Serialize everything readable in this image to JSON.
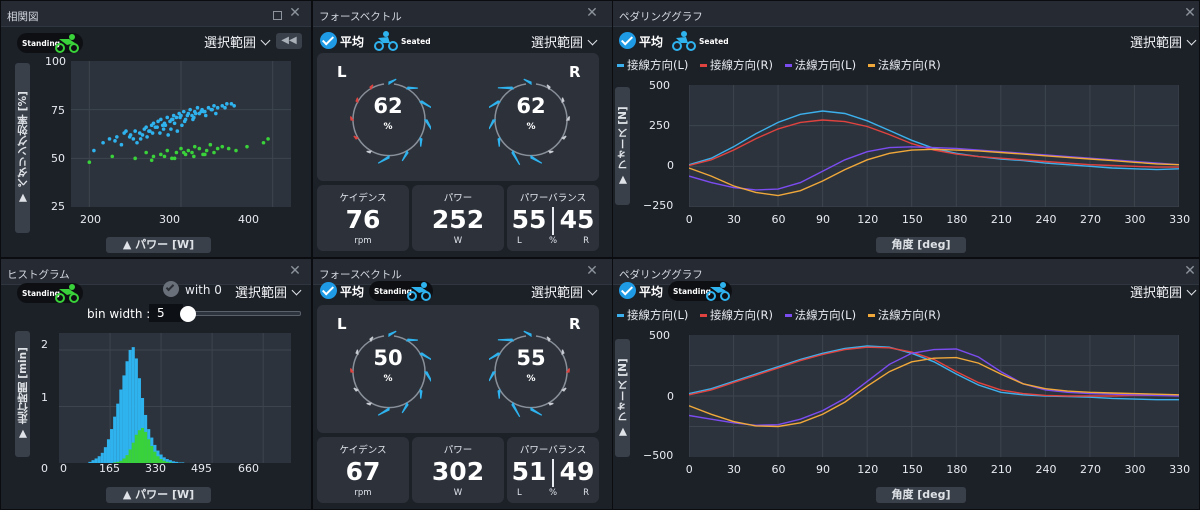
{
  "colors": {
    "blue": "#2fb3ef",
    "green": "#3ad23a",
    "tan_r": "#e0433f",
    "tan_l": "#3cb0ec",
    "nor_l": "#7b4cf0",
    "nor_r": "#f0a83a",
    "accent": "#1f9be6"
  },
  "icons": [
    "standing-rider-icon",
    "seated-rider-icon",
    "check-icon",
    "close-icon",
    "maximize-icon",
    "chevron-down-icon",
    "double-arrow-icon"
  ],
  "scatter": {
    "title": "相関図",
    "badge": "Standing",
    "range_label": "選択範囲",
    "ylabel": "▼ ペダリング効率 [%]",
    "xlabel": "▲ パワー [W]",
    "yticks": [
      "100",
      "75",
      "50",
      "25"
    ],
    "xticks": [
      "200",
      "300",
      "400"
    ]
  },
  "histogram": {
    "title": "ヒストグラム",
    "badge": "Standing",
    "with_label": "with 0",
    "range_label": "選択範囲",
    "bin_label": "bin width :",
    "bin_value": "5",
    "bin_fraction": 0.0,
    "ylabel": "▼ 走行時間 [min]",
    "xlabel": "▲ パワー [W]",
    "yticks": [
      "2",
      "1",
      "0"
    ],
    "xticks": [
      "0",
      "165",
      "330",
      "495",
      "660"
    ]
  },
  "force_top": {
    "title": "フォースベクトル",
    "avg_label": "平均",
    "badge": "Seated",
    "range_label": "選択範囲",
    "left_side": "L",
    "right_side": "R",
    "left_value": "62",
    "right_value": "62",
    "pct": "%",
    "cadence": {
      "label": "ケイデンス",
      "value": "76",
      "unit": "rpm"
    },
    "power": {
      "label": "パワー",
      "value": "252",
      "unit": "W"
    },
    "balance": {
      "label": "パワーバランス",
      "left": "55",
      "right": "45",
      "l": "L",
      "pct": "%",
      "r": "R"
    }
  },
  "force_bottom": {
    "title": "フォースベクトル",
    "avg_label": "平均",
    "badge": "Standing",
    "range_label": "選択範囲",
    "left_side": "L",
    "right_side": "R",
    "left_value": "50",
    "right_value": "55",
    "pct": "%",
    "cadence": {
      "label": "ケイデンス",
      "value": "67",
      "unit": "rpm"
    },
    "power": {
      "label": "パワー",
      "value": "302",
      "unit": "W"
    },
    "balance": {
      "label": "パワーバランス",
      "left": "51",
      "right": "49",
      "l": "L",
      "pct": "%",
      "r": "R"
    }
  },
  "pedal_top": {
    "title": "ペダリンググラフ",
    "avg_label": "平均",
    "badge": "Seated",
    "range_label": "選択範囲",
    "ylabel": "▼ フォース [N]",
    "xlabel": "角度 [deg]",
    "legend": [
      "接線方向(L)",
      "接線方向(R)",
      "法線方向(L)",
      "法線方向(R)"
    ],
    "yticks": [
      "500",
      "250",
      "0",
      "−250"
    ],
    "xticks": [
      "0",
      "30",
      "60",
      "90",
      "120",
      "150",
      "180",
      "210",
      "240",
      "270",
      "300",
      "330"
    ]
  },
  "pedal_bottom": {
    "title": "ペダリンググラフ",
    "avg_label": "平均",
    "badge": "Standing",
    "range_label": "選択範囲",
    "ylabel": "▼ フォース [N]",
    "xlabel": "角度 [deg]",
    "legend": [
      "接線方向(L)",
      "接線方向(R)",
      "法線方向(L)",
      "法線方向(R)"
    ],
    "yticks": [
      "500",
      "0",
      "−500"
    ],
    "xticks": [
      "0",
      "30",
      "60",
      "90",
      "120",
      "150",
      "180",
      "210",
      "240",
      "270",
      "300",
      "330"
    ]
  },
  "chart_data": [
    {
      "type": "scatter",
      "name": "correlation",
      "xlabel": "▲ パワー [W]",
      "ylabel": "▼ ペダリング効率 [%]",
      "xlim": [
        180,
        420
      ],
      "ylim": [
        25,
        100
      ],
      "series": [
        {
          "color": "#2fb3ef",
          "x": [
            205,
            215,
            222,
            230,
            238,
            245,
            250,
            255,
            260,
            262,
            265,
            268,
            270,
            272,
            275,
            278,
            280,
            282,
            285,
            288,
            290,
            292,
            295,
            298,
            300,
            303,
            305,
            308,
            310,
            312,
            315,
            318,
            320,
            323,
            326,
            330,
            333,
            336,
            340,
            345,
            350,
            355,
            235,
            248,
            258,
            266,
            274,
            283,
            291,
            299,
            307,
            316,
            325,
            334,
            228,
            244,
            256,
            269,
            281,
            293,
            304,
            314,
            322,
            338,
            348,
            358,
            240,
            252,
            263,
            277,
            289,
            301,
            313,
            327,
            286,
            296
          ],
          "y": [
            54,
            58,
            60,
            61,
            63,
            62,
            64,
            63,
            65,
            66,
            64,
            67,
            68,
            66,
            69,
            70,
            67,
            68,
            71,
            69,
            70,
            72,
            71,
            73,
            72,
            74,
            70,
            73,
            75,
            72,
            74,
            76,
            73,
            75,
            74,
            76,
            75,
            77,
            76,
            77,
            78,
            78,
            57,
            60,
            62,
            64,
            66,
            67,
            70,
            71,
            72,
            73,
            74,
            75,
            59,
            61,
            60,
            63,
            65,
            68,
            69,
            71,
            74,
            73,
            76,
            77,
            64,
            58,
            61,
            63,
            65,
            67,
            70,
            72,
            62,
            64
          ]
        },
        {
          "color": "#3ad23a",
          "x": [
            200,
            225,
            250,
            262,
            270,
            278,
            285,
            290,
            295,
            300,
            305,
            308,
            312,
            315,
            320,
            324,
            328,
            332,
            336,
            340,
            345,
            352,
            360,
            372,
            390,
            395,
            268,
            282,
            293,
            303,
            314,
            326
          ],
          "y": [
            48,
            51,
            50,
            53,
            51,
            52,
            54,
            50,
            53,
            55,
            52,
            54,
            53,
            56,
            55,
            52,
            54,
            57,
            53,
            55,
            56,
            55,
            54,
            56,
            58,
            60,
            49,
            51,
            50,
            53,
            51,
            52
          ]
        }
      ]
    },
    {
      "type": "bar",
      "name": "histogram",
      "xlabel": "▲ パワー [W]",
      "ylabel": "▼ 走行時間 [min]",
      "xlim": [
        0,
        750
      ],
      "ylim": [
        0,
        2.3
      ],
      "categories": [
        100,
        110,
        120,
        130,
        140,
        150,
        160,
        170,
        180,
        190,
        200,
        210,
        220,
        230,
        240,
        250,
        260,
        270,
        280,
        290,
        300,
        310,
        320,
        330,
        340,
        350,
        360,
        370,
        380,
        390,
        400
      ],
      "series": [
        {
          "name": "total",
          "color": "#2fb3ef",
          "values": [
            0.02,
            0.05,
            0.08,
            0.12,
            0.18,
            0.28,
            0.42,
            0.6,
            0.82,
            1.05,
            1.3,
            1.55,
            1.8,
            2.0,
            2.05,
            1.85,
            1.5,
            1.15,
            0.85,
            0.6,
            0.45,
            0.32,
            0.22,
            0.15,
            0.1,
            0.07,
            0.05,
            0.03,
            0.02,
            0.01,
            0.01
          ]
        },
        {
          "name": "standing",
          "color": "#3ad23a",
          "values": [
            0,
            0,
            0,
            0,
            0,
            0,
            0,
            0,
            0.01,
            0.02,
            0.04,
            0.08,
            0.14,
            0.24,
            0.36,
            0.5,
            0.58,
            0.62,
            0.55,
            0.42,
            0.3,
            0.2,
            0.12,
            0.07,
            0.04,
            0.02,
            0.01,
            0,
            0,
            0,
            0
          ]
        }
      ]
    },
    {
      "type": "line",
      "name": "pedaling_top",
      "xlabel": "角度 [deg]",
      "ylabel": "▼ フォース [N]",
      "xlim": [
        0,
        330
      ],
      "ylim": [
        -250,
        500
      ],
      "x": [
        0,
        15,
        30,
        45,
        60,
        75,
        90,
        105,
        120,
        135,
        150,
        165,
        180,
        195,
        210,
        225,
        240,
        255,
        270,
        285,
        300,
        315,
        330
      ],
      "series": [
        {
          "name": "接線方向(L)",
          "color": "#3cb0ec",
          "values": [
            10,
            50,
            120,
            200,
            270,
            320,
            340,
            325,
            280,
            220,
            160,
            110,
            80,
            60,
            45,
            35,
            20,
            10,
            0,
            -10,
            -15,
            -20,
            -15
          ]
        },
        {
          "name": "接線方向(R)",
          "color": "#e0433f",
          "values": [
            5,
            40,
            100,
            170,
            230,
            270,
            285,
            275,
            245,
            195,
            140,
            100,
            75,
            60,
            50,
            40,
            30,
            20,
            10,
            5,
            0,
            -5,
            -5
          ]
        },
        {
          "name": "法線方向(L)",
          "color": "#7b4cf0",
          "values": [
            -60,
            -100,
            -130,
            -145,
            -140,
            -100,
            -30,
            40,
            90,
            115,
            120,
            115,
            110,
            100,
            90,
            80,
            70,
            60,
            50,
            40,
            30,
            20,
            10
          ]
        },
        {
          "name": "法線方向(R)",
          "color": "#f0a83a",
          "values": [
            -10,
            -60,
            -120,
            -160,
            -180,
            -150,
            -90,
            -20,
            40,
            80,
            100,
            105,
            100,
            95,
            85,
            75,
            65,
            55,
            45,
            35,
            25,
            15,
            10
          ]
        }
      ]
    },
    {
      "type": "line",
      "name": "pedaling_bottom",
      "xlabel": "角度 [deg]",
      "ylabel": "▼ フォース [N]",
      "xlim": [
        0,
        330
      ],
      "ylim": [
        -500,
        500
      ],
      "x": [
        0,
        15,
        30,
        45,
        60,
        75,
        90,
        105,
        120,
        135,
        150,
        165,
        180,
        195,
        210,
        225,
        240,
        255,
        270,
        285,
        300,
        315,
        330
      ],
      "series": [
        {
          "name": "接線方向(L)",
          "color": "#3cb0ec",
          "values": [
            20,
            60,
            120,
            180,
            240,
            300,
            350,
            390,
            410,
            400,
            350,
            280,
            180,
            90,
            30,
            10,
            0,
            -5,
            -10,
            -20,
            -25,
            -30,
            -30
          ]
        },
        {
          "name": "接線方向(R)",
          "color": "#e0433f",
          "values": [
            10,
            50,
            110,
            170,
            230,
            290,
            340,
            380,
            400,
            395,
            360,
            300,
            200,
            110,
            50,
            20,
            5,
            0,
            0,
            0,
            5,
            5,
            5
          ]
        },
        {
          "name": "法線方向(L)",
          "color": "#7b4cf0",
          "values": [
            -160,
            -190,
            -220,
            -240,
            -235,
            -190,
            -120,
            -20,
            120,
            260,
            350,
            380,
            385,
            320,
            200,
            100,
            50,
            30,
            20,
            15,
            10,
            5,
            0
          ]
        },
        {
          "name": "法線方向(R)",
          "color": "#f0a83a",
          "values": [
            -80,
            -150,
            -210,
            -245,
            -250,
            -220,
            -150,
            -50,
            80,
            200,
            280,
            310,
            315,
            270,
            180,
            100,
            60,
            40,
            30,
            25,
            20,
            15,
            10
          ]
        }
      ]
    }
  ]
}
